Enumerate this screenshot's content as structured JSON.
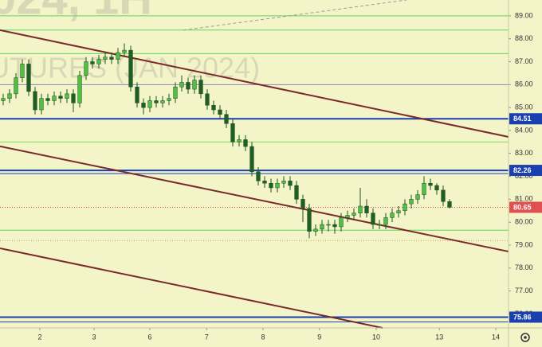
{
  "chart_data": {
    "type": "candlestick",
    "watermark_title": "024, 1H",
    "watermark_subtitle": "UTURES (JAN 2024)",
    "x": [
      0,
      1,
      2,
      3,
      4,
      5,
      6,
      7,
      8,
      9,
      10,
      11,
      12,
      13,
      14,
      15,
      16,
      17,
      18,
      19,
      20,
      21,
      22,
      23,
      24,
      25,
      26,
      27,
      28,
      29,
      30,
      31,
      32,
      33,
      34,
      35,
      36,
      37,
      38,
      39,
      40,
      41,
      42,
      43,
      44,
      45,
      46,
      47,
      48,
      49,
      50,
      51,
      52,
      53,
      54,
      55,
      56,
      57,
      58,
      59,
      60,
      61,
      62,
      63,
      64,
      65,
      66,
      67,
      68,
      69,
      70
    ],
    "open": [
      85.3,
      85.4,
      85.6,
      86.3,
      86.9,
      85.7,
      84.9,
      85.4,
      85.3,
      85.5,
      85.4,
      85.6,
      85.2,
      86.4,
      87.0,
      86.9,
      87.1,
      87.2,
      87.1,
      87.4,
      87.5,
      85.9,
      85.2,
      85.0,
      85.3,
      85.2,
      85.3,
      85.4,
      85.9,
      86.1,
      85.8,
      86.2,
      85.6,
      85.1,
      84.9,
      84.7,
      84.3,
      83.5,
      83.6,
      83.3,
      82.2,
      81.8,
      81.7,
      81.5,
      81.7,
      81.8,
      81.6,
      81.0,
      80.6,
      79.6,
      79.7,
      79.9,
      79.9,
      79.8,
      80.2,
      80.3,
      80.4,
      80.7,
      80.4,
      79.9,
      79.9,
      80.2,
      80.4,
      80.5,
      80.8,
      81.0,
      81.2,
      81.7,
      81.6,
      81.4,
      80.9
    ],
    "high": [
      85.6,
      85.8,
      86.5,
      87.1,
      87.1,
      85.9,
      85.6,
      85.6,
      85.7,
      85.7,
      85.8,
      85.8,
      86.6,
      87.2,
      87.2,
      87.3,
      87.4,
      87.4,
      87.6,
      87.8,
      87.7,
      86.1,
      85.4,
      85.5,
      85.5,
      85.5,
      85.6,
      86.1,
      86.4,
      86.3,
      86.4,
      86.4,
      85.8,
      85.3,
      85.1,
      84.9,
      84.5,
      83.8,
      83.8,
      83.5,
      82.4,
      82.0,
      81.9,
      81.9,
      82.0,
      82.0,
      81.8,
      81.2,
      80.8,
      79.9,
      80.1,
      80.1,
      80.1,
      80.4,
      80.5,
      80.6,
      81.5,
      81.0,
      80.6,
      80.1,
      80.4,
      80.6,
      80.7,
      81.0,
      81.2,
      81.4,
      82.0,
      81.9,
      81.7,
      81.6,
      81.0
    ],
    "low": [
      85.1,
      85.2,
      85.4,
      86.1,
      85.5,
      84.7,
      84.7,
      85.1,
      85.1,
      85.2,
      85.2,
      84.8,
      85.0,
      86.2,
      86.7,
      86.7,
      86.9,
      86.9,
      86.9,
      87.2,
      85.7,
      85.0,
      84.7,
      84.8,
      85.0,
      85.0,
      85.1,
      85.2,
      85.7,
      85.6,
      85.6,
      85.4,
      84.9,
      84.7,
      84.5,
      84.1,
      83.3,
      83.3,
      83.1,
      82.0,
      81.6,
      81.5,
      81.3,
      81.3,
      81.5,
      81.4,
      80.8,
      80.0,
      79.3,
      79.4,
      79.5,
      79.6,
      79.5,
      79.6,
      80.0,
      80.1,
      80.2,
      80.2,
      79.7,
      79.7,
      79.7,
      80.0,
      80.2,
      80.3,
      80.6,
      80.8,
      81.0,
      81.4,
      81.2,
      80.7,
      80.6
    ],
    "close": [
      85.4,
      85.6,
      86.3,
      86.9,
      85.7,
      84.9,
      85.4,
      85.3,
      85.5,
      85.4,
      85.6,
      85.2,
      86.4,
      87.0,
      86.9,
      87.1,
      87.2,
      87.1,
      87.4,
      87.5,
      85.9,
      85.2,
      85.0,
      85.3,
      85.2,
      85.3,
      85.4,
      85.9,
      86.1,
      85.8,
      86.2,
      85.6,
      85.1,
      84.9,
      84.7,
      84.3,
      83.5,
      83.6,
      83.3,
      82.2,
      81.8,
      81.7,
      81.5,
      81.7,
      81.8,
      81.6,
      81.0,
      80.6,
      79.6,
      79.7,
      79.9,
      79.9,
      79.8,
      80.2,
      80.3,
      80.4,
      80.7,
      80.4,
      79.9,
      79.9,
      80.2,
      80.4,
      80.5,
      80.8,
      81.0,
      81.2,
      81.7,
      81.6,
      81.4,
      80.9,
      80.65
    ],
    "up_color": "#4fbf45",
    "down_color": "#1f5f24",
    "xlim": [
      -0.5,
      79.25
    ],
    "ylim": [
      75.39,
      89.69
    ],
    "xticks": [
      {
        "value": 5.75,
        "label": "2"
      },
      {
        "value": 14.25,
        "label": "3"
      },
      {
        "value": 23,
        "label": "6"
      },
      {
        "value": 31.9,
        "label": "7"
      },
      {
        "value": 40.75,
        "label": "8"
      },
      {
        "value": 49.6,
        "label": "9"
      },
      {
        "value": 58.5,
        "label": "10"
      },
      {
        "value": 68.4,
        "label": "13"
      },
      {
        "value": 77.25,
        "label": "14"
      }
    ],
    "yticks": [
      {
        "value": 76,
        "label": "76.00"
      },
      {
        "value": 77,
        "label": "77.00"
      },
      {
        "value": 78,
        "label": "78.00"
      },
      {
        "value": 79,
        "label": "79.00"
      },
      {
        "value": 80,
        "label": "80.00"
      },
      {
        "value": 81,
        "label": "81.00"
      },
      {
        "value": 82,
        "label": "82.00"
      },
      {
        "value": 83,
        "label": "83.00"
      },
      {
        "value": 84,
        "label": "84.00"
      },
      {
        "value": 85,
        "label": "85.00"
      },
      {
        "value": 86,
        "label": "86.00"
      },
      {
        "value": 87,
        "label": "87.00"
      },
      {
        "value": 88,
        "label": "88.00"
      },
      {
        "value": 89,
        "label": "89.00"
      }
    ],
    "levels": [
      {
        "value": 89.0,
        "color": "#5cd65c",
        "style": "solid",
        "width": 1
      },
      {
        "value": 88.38,
        "color": "#5cd65c",
        "style": "solid",
        "width": 1
      },
      {
        "value": 87.35,
        "color": "#5cd65c",
        "style": "solid",
        "width": 1
      },
      {
        "value": 86.0,
        "color": "#8c7fb0",
        "style": "solid",
        "width": 1
      },
      {
        "value": 84.51,
        "color": "#1a3fb0",
        "style": "solid",
        "width": 2
      },
      {
        "value": 83.5,
        "color": "#7ed957",
        "style": "solid",
        "width": 1
      },
      {
        "value": 82.26,
        "color": "#1a3fb0",
        "style": "solid",
        "width": 2
      },
      {
        "value": 82.12,
        "color": "#1a3fb0",
        "style": "solid",
        "width": 1
      },
      {
        "value": 80.65,
        "color": "#e05050",
        "style": "dotted",
        "width": 1
      },
      {
        "value": 79.65,
        "color": "#5cd65c",
        "style": "solid",
        "width": 1
      },
      {
        "value": 79.2,
        "color": "#c0a060",
        "style": "dotted",
        "width": 1
      },
      {
        "value": 75.86,
        "color": "#1a3fb0",
        "style": "solid",
        "width": 2
      },
      {
        "value": 75.65,
        "color": "#1a3fb0",
        "style": "solid",
        "width": 1
      }
    ],
    "trendlines": [
      {
        "x": [
          -0.5,
          79.25
        ],
        "y": [
          88.375,
          83.72
        ],
        "color": "#7a2a2a",
        "style": "solid"
      },
      {
        "x": [
          -0.5,
          79.25
        ],
        "y": [
          83.31,
          78.72
        ],
        "color": "#7a2a2a",
        "style": "solid"
      },
      {
        "x": [
          -0.5,
          59.5
        ],
        "y": [
          78.86,
          75.39
        ],
        "color": "#7a2a2a",
        "style": "solid"
      },
      {
        "x": [
          28.25,
          63.25
        ],
        "y": [
          88.375,
          89.69
        ],
        "color": "#9a9a9a",
        "style": "dashed"
      }
    ],
    "price_labels": [
      {
        "value": 84.51,
        "color": "#1a3fb0"
      },
      {
        "value": 82.26,
        "color": "#1a3fb0"
      },
      {
        "value": 80.65,
        "color": "#e05050"
      },
      {
        "value": 75.86,
        "color": "#1a3fb0"
      }
    ]
  }
}
